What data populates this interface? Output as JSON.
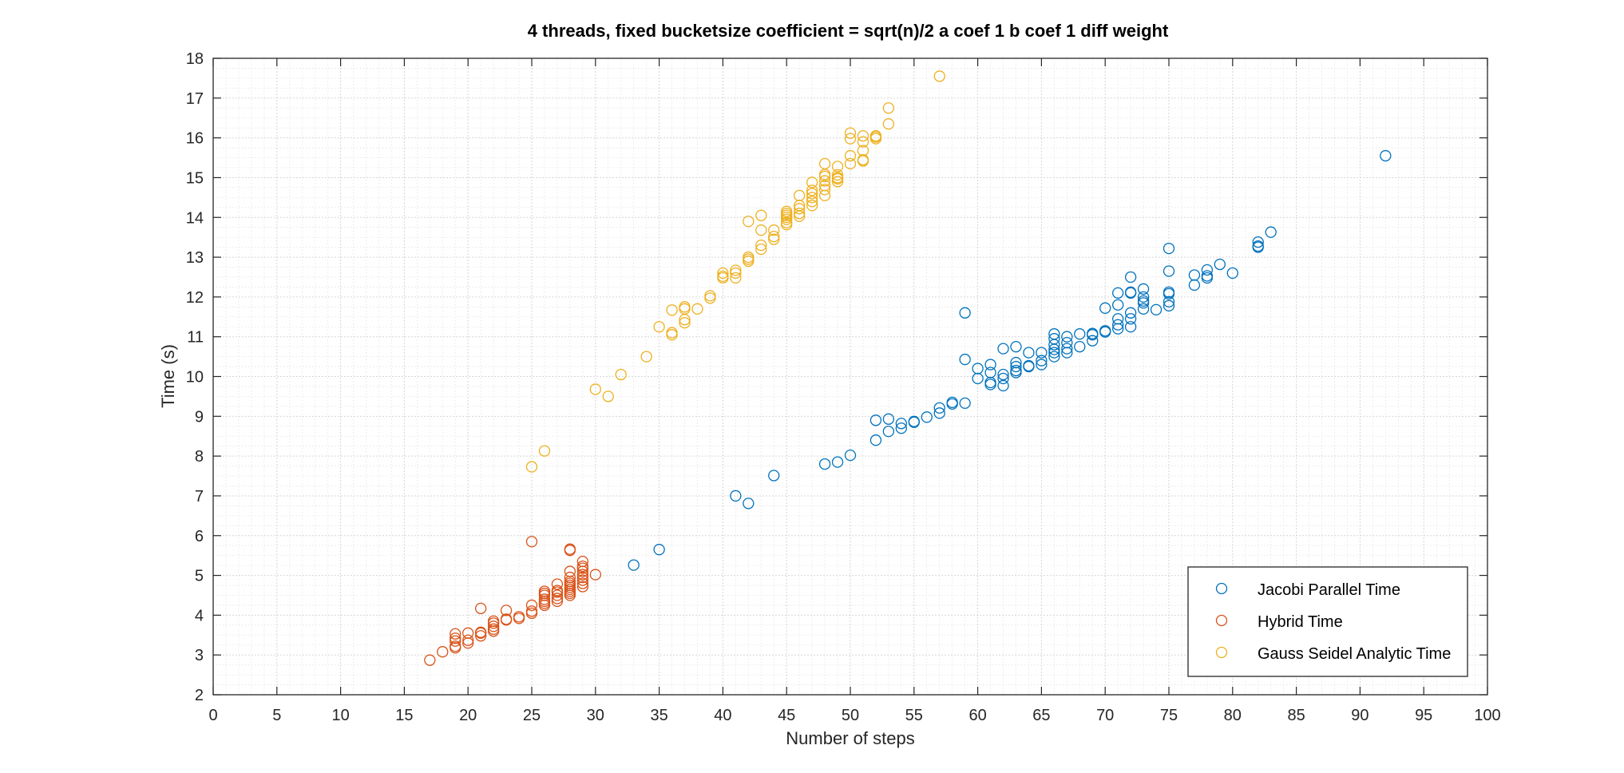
{
  "chart_data": {
    "type": "scatter",
    "title": "4 threads, fixed bucketsize coefficient = sqrt(n)/2 a coef 1 b coef 1 diff weight",
    "xlabel": "Number of steps",
    "ylabel": "Time (s)",
    "xlim": [
      0,
      100
    ],
    "ylim": [
      2,
      18
    ],
    "xticks": [
      0,
      5,
      10,
      15,
      20,
      25,
      30,
      35,
      40,
      45,
      50,
      55,
      60,
      65,
      70,
      75,
      80,
      85,
      90,
      95,
      100
    ],
    "yticks": [
      2,
      3,
      4,
      5,
      6,
      7,
      8,
      9,
      10,
      11,
      12,
      13,
      14,
      15,
      16,
      17,
      18
    ],
    "grid": true,
    "minor_grid": true,
    "legend_position": "bottom-right",
    "series": [
      {
        "name": "Jacobi Parallel Time",
        "color": "#0072BD",
        "points": [
          [
            33,
            5.26
          ],
          [
            35,
            5.65
          ],
          [
            41,
            7.0
          ],
          [
            42,
            6.81
          ],
          [
            44,
            7.51
          ],
          [
            48,
            7.8
          ],
          [
            49,
            7.85
          ],
          [
            50,
            8.02
          ],
          [
            52,
            8.4
          ],
          [
            52,
            8.9
          ],
          [
            53,
            8.62
          ],
          [
            53,
            8.93
          ],
          [
            54,
            8.7
          ],
          [
            54,
            8.82
          ],
          [
            55,
            8.85
          ],
          [
            55,
            8.87
          ],
          [
            56,
            8.98
          ],
          [
            57,
            9.08
          ],
          [
            57,
            9.21
          ],
          [
            58,
            9.31
          ],
          [
            58,
            9.35
          ],
          [
            59,
            9.33
          ],
          [
            59,
            10.43
          ],
          [
            59,
            11.6
          ],
          [
            60,
            9.95
          ],
          [
            60,
            10.2
          ],
          [
            61,
            9.8
          ],
          [
            61,
            9.85
          ],
          [
            61,
            10.1
          ],
          [
            61,
            10.3
          ],
          [
            62,
            9.77
          ],
          [
            62,
            9.95
          ],
          [
            62,
            10.05
          ],
          [
            62,
            10.7
          ],
          [
            63,
            10.1
          ],
          [
            63,
            10.15
          ],
          [
            63,
            10.25
          ],
          [
            63,
            10.35
          ],
          [
            63,
            10.75
          ],
          [
            64,
            10.25
          ],
          [
            64,
            10.27
          ],
          [
            64,
            10.6
          ],
          [
            65,
            10.3
          ],
          [
            65,
            10.4
          ],
          [
            65,
            10.6
          ],
          [
            66,
            10.5
          ],
          [
            66,
            10.6
          ],
          [
            66,
            10.68
          ],
          [
            66,
            10.8
          ],
          [
            66,
            10.95
          ],
          [
            66,
            11.07
          ],
          [
            67,
            10.6
          ],
          [
            67,
            10.7
          ],
          [
            67,
            10.85
          ],
          [
            67,
            11.0
          ],
          [
            68,
            10.75
          ],
          [
            68,
            11.07
          ],
          [
            69,
            10.9
          ],
          [
            69,
            11.05
          ],
          [
            69,
            11.08
          ],
          [
            70,
            11.12
          ],
          [
            70,
            11.15
          ],
          [
            70,
            11.72
          ],
          [
            71,
            11.2
          ],
          [
            71,
            11.3
          ],
          [
            71,
            11.45
          ],
          [
            71,
            11.8
          ],
          [
            71,
            12.1
          ],
          [
            72,
            11.25
          ],
          [
            72,
            11.45
          ],
          [
            72,
            11.6
          ],
          [
            72,
            12.1
          ],
          [
            72,
            12.12
          ],
          [
            72,
            12.5
          ],
          [
            73,
            11.7
          ],
          [
            73,
            11.85
          ],
          [
            73,
            11.9
          ],
          [
            73,
            12.0
          ],
          [
            73,
            12.2
          ],
          [
            74,
            11.68
          ],
          [
            75,
            11.78
          ],
          [
            75,
            11.88
          ],
          [
            75,
            12.08
          ],
          [
            75,
            12.12
          ],
          [
            75,
            12.65
          ],
          [
            75,
            13.22
          ],
          [
            77,
            12.3
          ],
          [
            77,
            12.55
          ],
          [
            78,
            12.48
          ],
          [
            78,
            12.53
          ],
          [
            78,
            12.68
          ],
          [
            79,
            12.82
          ],
          [
            80,
            12.6
          ],
          [
            82,
            13.25
          ],
          [
            82,
            13.28
          ],
          [
            82,
            13.38
          ],
          [
            83,
            13.63
          ],
          [
            92,
            15.55
          ]
        ]
      },
      {
        "name": "Hybrid Time",
        "color": "#D95319",
        "points": [
          [
            17,
            2.87
          ],
          [
            18,
            3.08
          ],
          [
            19,
            3.18
          ],
          [
            19,
            3.22
          ],
          [
            19,
            3.35
          ],
          [
            19,
            3.42
          ],
          [
            19,
            3.53
          ],
          [
            20,
            3.3
          ],
          [
            20,
            3.37
          ],
          [
            20,
            3.55
          ],
          [
            21,
            3.48
          ],
          [
            21,
            3.55
          ],
          [
            21,
            3.57
          ],
          [
            21,
            4.17
          ],
          [
            22,
            3.6
          ],
          [
            22,
            3.65
          ],
          [
            22,
            3.72
          ],
          [
            22,
            3.8
          ],
          [
            22,
            3.85
          ],
          [
            23,
            3.88
          ],
          [
            23,
            3.9
          ],
          [
            23,
            4.12
          ],
          [
            24,
            3.92
          ],
          [
            24,
            3.96
          ],
          [
            25,
            4.05
          ],
          [
            25,
            4.1
          ],
          [
            25,
            4.25
          ],
          [
            25,
            5.85
          ],
          [
            26,
            4.25
          ],
          [
            26,
            4.3
          ],
          [
            26,
            4.35
          ],
          [
            26,
            4.4
          ],
          [
            26,
            4.5
          ],
          [
            26,
            4.55
          ],
          [
            26,
            4.6
          ],
          [
            27,
            4.35
          ],
          [
            27,
            4.42
          ],
          [
            27,
            4.5
          ],
          [
            27,
            4.58
          ],
          [
            27,
            4.62
          ],
          [
            27,
            4.78
          ],
          [
            28,
            4.5
          ],
          [
            28,
            4.55
          ],
          [
            28,
            4.6
          ],
          [
            28,
            4.65
          ],
          [
            28,
            4.7
          ],
          [
            28,
            4.75
          ],
          [
            28,
            4.8
          ],
          [
            28,
            4.85
          ],
          [
            28,
            4.95
          ],
          [
            28,
            5.1
          ],
          [
            28,
            5.63
          ],
          [
            28,
            5.66
          ],
          [
            29,
            4.72
          ],
          [
            29,
            4.8
          ],
          [
            29,
            4.88
          ],
          [
            29,
            4.95
          ],
          [
            29,
            5.02
          ],
          [
            29,
            5.1
          ],
          [
            29,
            5.18
          ],
          [
            29,
            5.23
          ],
          [
            29,
            5.35
          ],
          [
            30,
            5.02
          ]
        ]
      },
      {
        "name": "Gauss Seidel Analytic Time",
        "color": "#EDB120",
        "points": [
          [
            25,
            7.73
          ],
          [
            26,
            8.13
          ],
          [
            30,
            9.68
          ],
          [
            31,
            9.5
          ],
          [
            32,
            10.05
          ],
          [
            34,
            10.5
          ],
          [
            35,
            11.25
          ],
          [
            36,
            11.05
          ],
          [
            36,
            11.1
          ],
          [
            36,
            11.67
          ],
          [
            37,
            11.35
          ],
          [
            37,
            11.43
          ],
          [
            37,
            11.7
          ],
          [
            37,
            11.75
          ],
          [
            38,
            11.7
          ],
          [
            39,
            11.97
          ],
          [
            39,
            12.03
          ],
          [
            40,
            12.48
          ],
          [
            40,
            12.52
          ],
          [
            40,
            12.6
          ],
          [
            41,
            12.48
          ],
          [
            41,
            12.6
          ],
          [
            41,
            12.67
          ],
          [
            42,
            12.9
          ],
          [
            42,
            12.95
          ],
          [
            42,
            13.0
          ],
          [
            42,
            13.9
          ],
          [
            43,
            13.2
          ],
          [
            43,
            13.3
          ],
          [
            43,
            13.68
          ],
          [
            43,
            14.05
          ],
          [
            44,
            13.45
          ],
          [
            44,
            13.52
          ],
          [
            44,
            13.68
          ],
          [
            45,
            13.82
          ],
          [
            45,
            13.87
          ],
          [
            45,
            13.95
          ],
          [
            45,
            14.0
          ],
          [
            45,
            14.05
          ],
          [
            45,
            14.1
          ],
          [
            45,
            14.15
          ],
          [
            46,
            14.03
          ],
          [
            46,
            14.1
          ],
          [
            46,
            14.22
          ],
          [
            46,
            14.3
          ],
          [
            46,
            14.55
          ],
          [
            47,
            14.3
          ],
          [
            47,
            14.4
          ],
          [
            47,
            14.5
          ],
          [
            47,
            14.6
          ],
          [
            47,
            14.68
          ],
          [
            47,
            14.88
          ],
          [
            48,
            14.55
          ],
          [
            48,
            14.7
          ],
          [
            48,
            14.8
          ],
          [
            48,
            14.92
          ],
          [
            48,
            15.03
          ],
          [
            48,
            15.08
          ],
          [
            48,
            15.35
          ],
          [
            49,
            14.9
          ],
          [
            49,
            14.97
          ],
          [
            49,
            15.0
          ],
          [
            49,
            15.07
          ],
          [
            49,
            15.28
          ],
          [
            50,
            15.35
          ],
          [
            50,
            15.55
          ],
          [
            50,
            15.98
          ],
          [
            50,
            16.12
          ],
          [
            51,
            15.42
          ],
          [
            51,
            15.45
          ],
          [
            51,
            15.68
          ],
          [
            51,
            15.9
          ],
          [
            51,
            16.05
          ],
          [
            52,
            15.98
          ],
          [
            52,
            16.02
          ],
          [
            52,
            16.05
          ],
          [
            53,
            16.35
          ],
          [
            53,
            16.75
          ],
          [
            57,
            17.55
          ]
        ]
      }
    ]
  }
}
